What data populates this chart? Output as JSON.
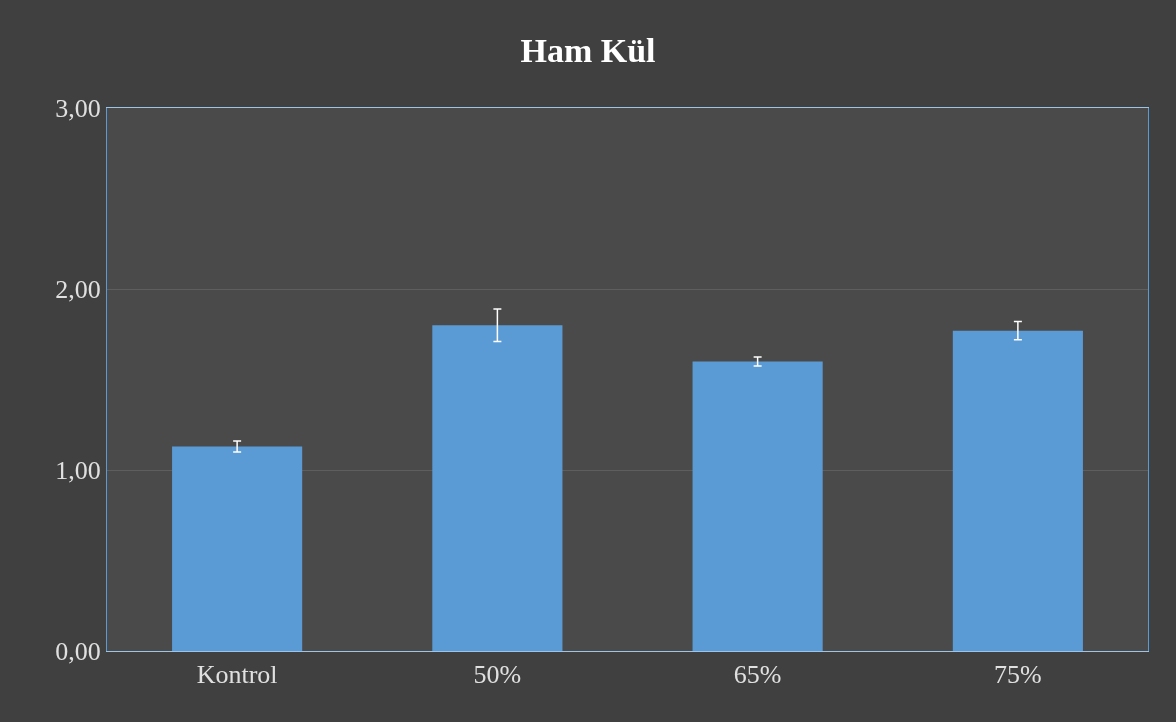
{
  "chart_data": {
    "type": "bar",
    "title": "Ham Kül",
    "categories": [
      "Kontrol",
      "50%",
      "65%",
      "75%"
    ],
    "values": [
      1.13,
      1.8,
      1.6,
      1.77
    ],
    "errors": [
      0.03,
      0.09,
      0.025,
      0.05
    ],
    "color": "#5b9bd5",
    "ylim": [
      0,
      3
    ],
    "yticks": [
      {
        "value": 0,
        "label": "0,00"
      },
      {
        "value": 1,
        "label": "1,00"
      },
      {
        "value": 2,
        "label": "2,00"
      },
      {
        "value": 3,
        "label": "3,00"
      }
    ],
    "grid": "y"
  }
}
